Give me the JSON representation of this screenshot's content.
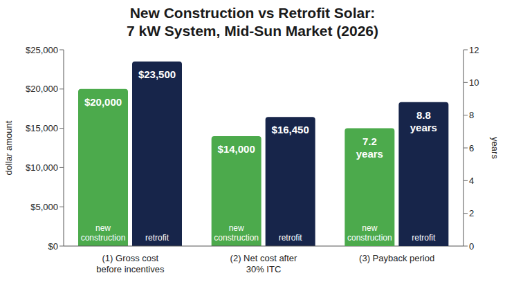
{
  "chart_data": {
    "type": "bar",
    "title": "New Construction vs Retrofit Solar:\n7 kW System, Mid-Sun Market (2026)",
    "categories": [
      "(1) Gross cost before incentives",
      "(2) Net cost after 30% ITC",
      "(3) Payback period"
    ],
    "series": [
      {
        "name": "new construction",
        "color": "#4caa4c",
        "values": [
          20000,
          14000,
          null
        ],
        "value_labels": [
          "$20,000",
          "$14,000",
          null
        ]
      },
      {
        "name": "retrofit",
        "color": "#17254a",
        "values": [
          23500,
          16450,
          null
        ],
        "value_labels": [
          "$23,500",
          "$16,450",
          null
        ]
      },
      {
        "name": "new construction",
        "color": "#4caa4c",
        "axis": "y2",
        "values": [
          null,
          null,
          7.2
        ],
        "value_labels": [
          null,
          null,
          "7.2 years"
        ]
      },
      {
        "name": "retrofit",
        "color": "#17254a",
        "axis": "y2",
        "values": [
          null,
          null,
          8.8
        ],
        "value_labels": [
          null,
          null,
          "8.8 years"
        ]
      }
    ],
    "y_label": "dollar amount",
    "y2_label": "years",
    "ylim": [
      0,
      25000
    ],
    "yticks": [
      {
        "value": 0,
        "label": "$0"
      },
      {
        "value": 5000,
        "label": "$5,000"
      },
      {
        "value": 10000,
        "label": "$10,000"
      },
      {
        "value": 15000,
        "label": "$15,000"
      },
      {
        "value": 20000,
        "label": "$20,000"
      },
      {
        "value": 25000,
        "label": "$25,000"
      }
    ],
    "y2lim": [
      0,
      12
    ],
    "y2ticks": [
      0,
      2,
      4,
      6,
      8,
      10,
      12
    ],
    "grid": false,
    "data_labels": true
  }
}
